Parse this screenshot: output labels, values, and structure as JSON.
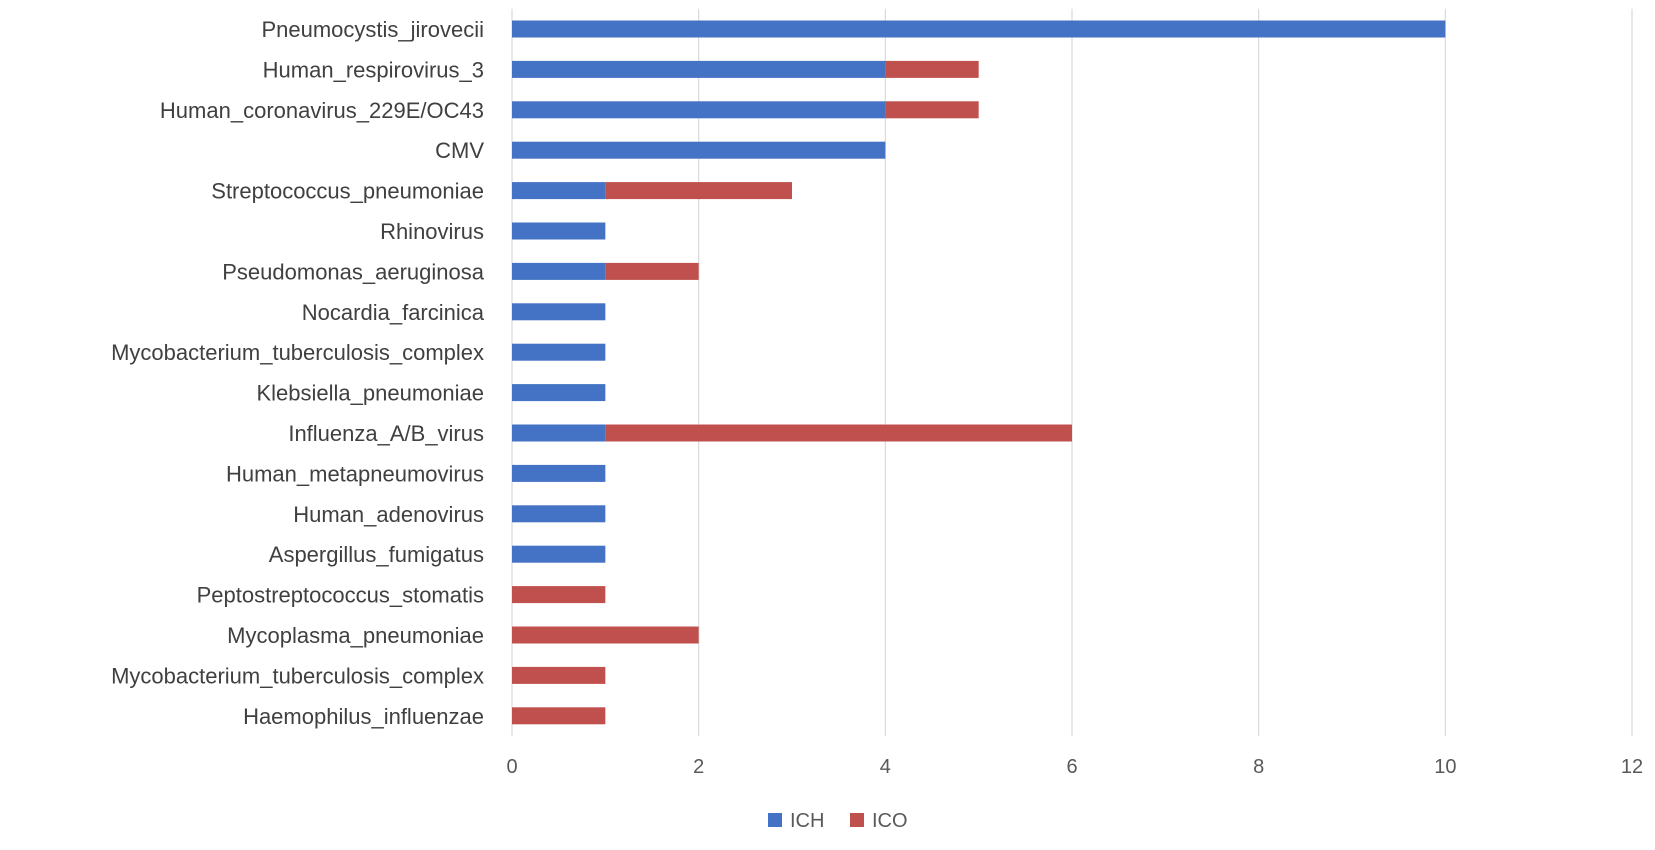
{
  "chart_data": {
    "type": "bar",
    "orientation": "horizontal",
    "stacked": true,
    "categories": [
      "Pneumocystis_jirovecii",
      "Human_respirovirus_3",
      "Human_coronavirus_229E/OC43",
      "CMV",
      "Streptococcus_pneumoniae",
      "Rhinovirus",
      "Pseudomonas_aeruginosa",
      "Nocardia_farcinica",
      "Mycobacterium_tuberculosis_complex",
      "Klebsiella_pneumoniae",
      "Influenza_A/B_virus",
      "Human_metapneumovirus",
      "Human_adenovirus",
      "Aspergillus_fumigatus",
      "Peptostreptococcus_stomatis",
      "Mycoplasma_pneumoniae",
      "Mycobacterium_tuberculosis_complex",
      "Haemophilus_influenzae"
    ],
    "series": [
      {
        "name": "ICH",
        "color": "#4472c4",
        "values": [
          10,
          4,
          4,
          4,
          1,
          1,
          1,
          1,
          1,
          1,
          1,
          1,
          1,
          1,
          0,
          0,
          0,
          0
        ]
      },
      {
        "name": "ICO",
        "color": "#c0504d",
        "values": [
          0,
          1,
          1,
          0,
          2,
          0,
          1,
          0,
          0,
          0,
          5,
          0,
          0,
          0,
          1,
          2,
          1,
          1
        ]
      }
    ],
    "xlim": [
      0,
      12
    ],
    "xticks": [
      0,
      2,
      4,
      6,
      8,
      10,
      12
    ],
    "grid": true,
    "legend_position": "bottom",
    "title": "",
    "xlabel": "",
    "ylabel": ""
  }
}
